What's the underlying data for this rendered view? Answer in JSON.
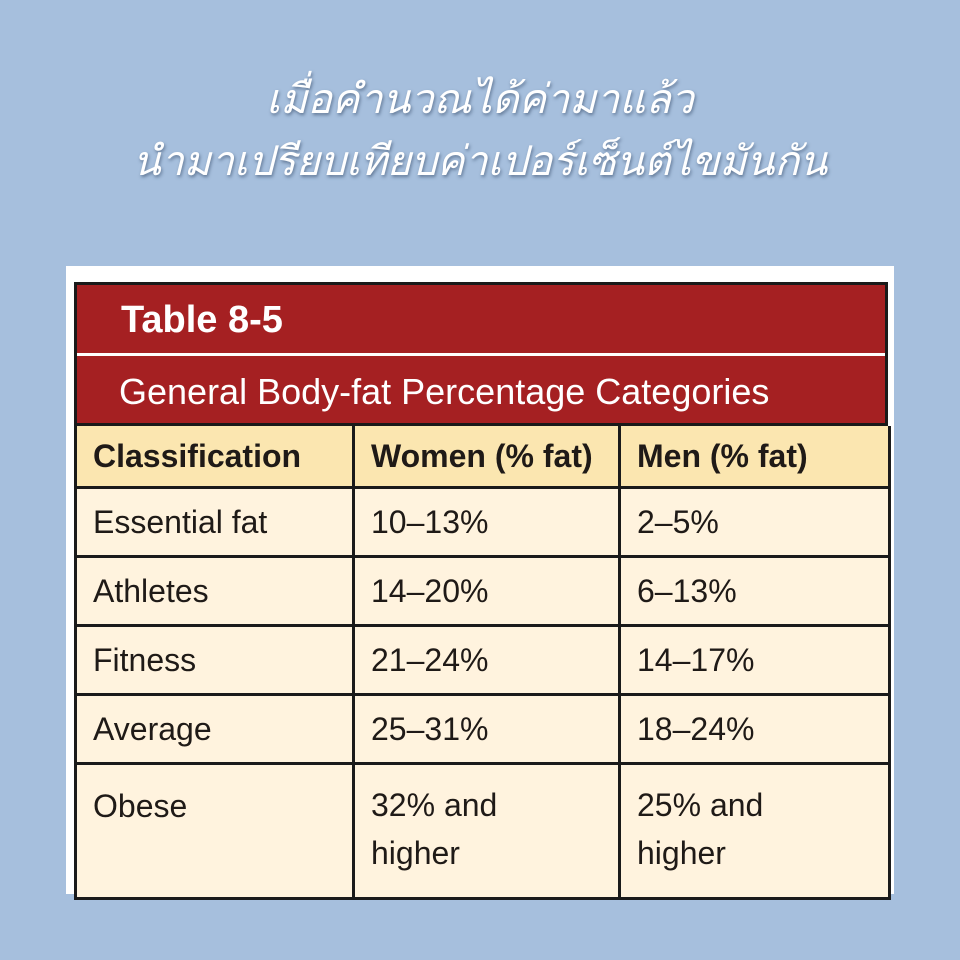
{
  "caption": {
    "line1": "เมื่อคำนวณได้ค่ามาแล้ว",
    "line2": "นำมาเปรียบเทียบค่าเปอร์เซ็นต์ไขมันกัน"
  },
  "table": {
    "number": "Table 8-5",
    "title": "General Body-fat Percentage Categories",
    "headers": [
      "Classification",
      "Women (% fat)",
      "Men (% fat)"
    ],
    "rows": [
      [
        "Essential fat",
        "10–13%",
        "2–5%"
      ],
      [
        "Athletes",
        "14–20%",
        "6–13%"
      ],
      [
        "Fitness",
        "21–24%",
        "14–17%"
      ],
      [
        "Average",
        "25–31%",
        "18–24%"
      ],
      [
        "Obese",
        "32% and higher",
        "25% and higher"
      ]
    ],
    "last_row_split": {
      "women_line1": "32% and",
      "women_line2": "higher",
      "men_line1": "25% and",
      "men_line2": "higher"
    }
  },
  "colors": {
    "background": "#a6bfdd",
    "header_red": "#a52022",
    "header_row": "#fbe6b0",
    "body_row": "#fff3de",
    "border": "#1a1a1a"
  }
}
